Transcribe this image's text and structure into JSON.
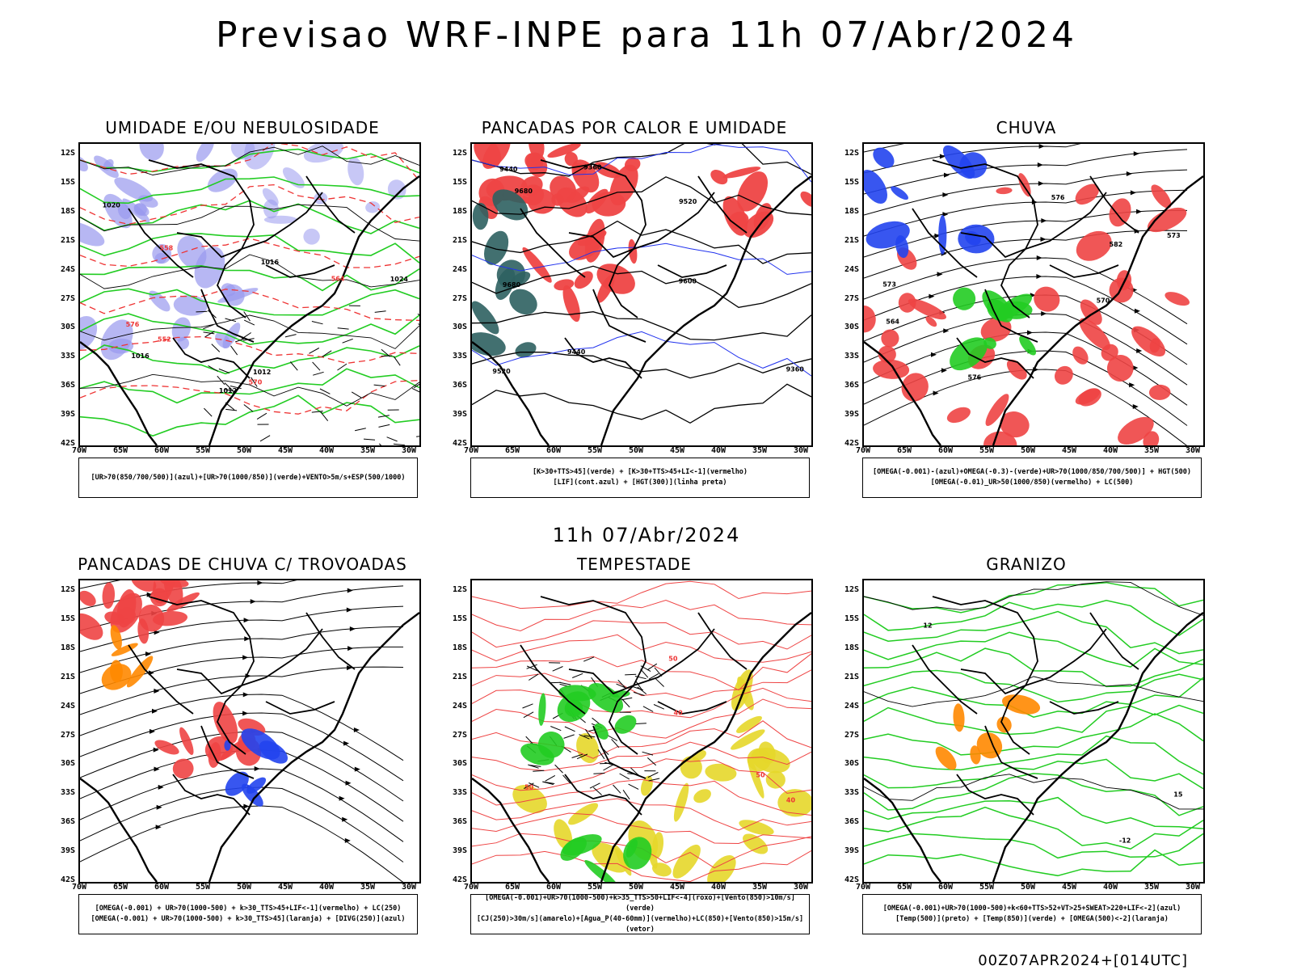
{
  "header": {
    "title": "Previsao WRF-INPE  para 11h 07/Abr/2024",
    "subtitle": "11h 07/Abr/2024",
    "footer": "00Z07APR2024+[014UTC]"
  },
  "axes": {
    "lat_labels": [
      "12S",
      "15S",
      "18S",
      "21S",
      "24S",
      "27S",
      "30S",
      "33S",
      "36S",
      "39S",
      "42S"
    ],
    "lon_labels": [
      "70W",
      "65W",
      "60W",
      "55W",
      "50W",
      "45W",
      "40W",
      "35W",
      "30W"
    ]
  },
  "panels": [
    {
      "id": "umidade",
      "title": "UMIDADE E/OU NEBULOSIDADE",
      "legend": [
        "[UR>70(850/700/500)](azul)+[UR>70(1000/850)](verde)+VENTO>5m/s+ESP(500/1000)"
      ],
      "contour_labels": [
        "1012",
        "1012",
        "1016",
        "1020",
        "1024",
        "1016",
        "570",
        "576",
        "564",
        "558",
        "552"
      ],
      "colors": {
        "fill": "#9999ee",
        "contour": "#22cc22",
        "dashed": "#ee3333"
      }
    },
    {
      "id": "pancadas-calor",
      "title": "PANCADAS POR CALOR E UMIDADE",
      "legend": [
        "[K>30+TTS>45](verde) + [K>30+TTS>45+LI<-1](vermelho)",
        "[LIF](cont.azul) + [HGT(300)](linha preta)"
      ],
      "contour_labels": [
        "9680",
        "9680",
        "9600",
        "9520",
        "9520",
        "9440",
        "9440",
        "9360",
        "9360"
      ],
      "colors": {
        "fill": "#ee4444",
        "fill2": "#2e6060",
        "contour": "#000000",
        "blue": "#2233ee"
      }
    },
    {
      "id": "chuva",
      "title": "CHUVA",
      "legend": [
        "[OMEGA(-0.001)-(azul)+OMEGA(-0.3)-(verde)+UR>70(1000/850/700/500)] + HGT(500)",
        "[OMEGA(-0.01)_UR>50(1000/850)(vermelho) + LC(500)"
      ],
      "contour_labels": [
        "582",
        "576",
        "570",
        "573",
        "576",
        "573",
        "564"
      ],
      "colors": {
        "fill": "#ee4444",
        "blue": "#2244ee",
        "green": "#22cc22"
      }
    },
    {
      "id": "pancadas-trovoadas",
      "title": "PANCADAS DE CHUVA C/ TROVOADAS",
      "legend": [
        "[OMEGA(-0.001) + UR>70(1000-500) + k>30_TTS>45+LIF<-1](vermelho) + LC(250)",
        "[OMEGA(-0.001) + UR>70(1000-500) + k>30_TTS>45](laranja) + [DIVG(250)](azul)"
      ],
      "contour_labels": [],
      "colors": {
        "fill": "#ee4444",
        "blue": "#2244ee",
        "orange": "#ff8800"
      }
    },
    {
      "id": "tempestade",
      "title": "TEMPESTADE",
      "legend": [
        "[OMEGA(-0.001)+UR>70(1000-500)+k>35_TTS>50+LIF<-4](roxo)+[Vento(850)>10m/s](verde)",
        "[CJ(250)>30m/s](amarelo)+[Agua_P(40-60mm)](vermelho)+LC(850)+[Vento(850)>15m/s](vetor)"
      ],
      "contour_labels": [
        "50",
        "40",
        "50",
        "40",
        "50"
      ],
      "colors": {
        "fill": "#e6d72a",
        "green": "#22cc22",
        "red": "#ee4444"
      }
    },
    {
      "id": "granizo",
      "title": "GRANIZO",
      "legend": [
        "[OMEGA(-0.001)+UR>70(1000-500)+k<60+TTS>52+VT>25+SWEAT>220+LIF<-2](azul)",
        "[Temp(500)](preto) + [Temp(850)](verde) + [OMEGA(500)<-2](laranja)"
      ],
      "contour_labels": [
        "-12",
        "12",
        "15"
      ],
      "colors": {
        "green": "#22cc22",
        "orange": "#ff8800"
      }
    }
  ]
}
